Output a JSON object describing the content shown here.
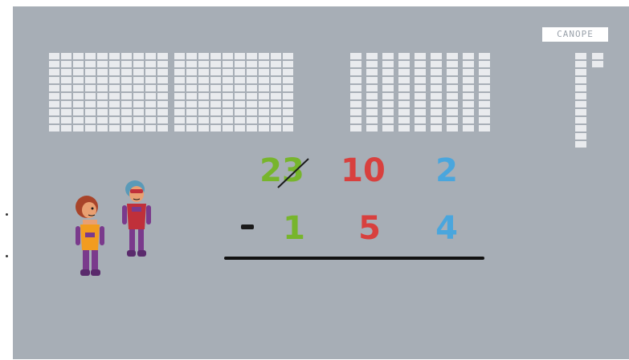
{
  "logo": {
    "text": "CANOPE"
  },
  "problem": {
    "top_row": {
      "hundreds": {
        "value": "23",
        "crossed_out": true,
        "color": "#77b52c"
      },
      "tens": {
        "value": "10",
        "color": "#d8403e"
      },
      "ones": {
        "value": "2",
        "color": "#4aa6dd"
      }
    },
    "operator": "-",
    "bottom_row": {
      "hundreds": {
        "value": "1",
        "color": "#77b52c"
      },
      "tens": {
        "value": "5",
        "color": "#d8403e"
      },
      "ones": {
        "value": "4",
        "color": "#4aa6dd"
      }
    }
  },
  "blocks": {
    "hundreds_flats": 2,
    "tens_rods": 9,
    "ones_units": 12
  },
  "characters": [
    "girl-character",
    "boy-character"
  ]
}
